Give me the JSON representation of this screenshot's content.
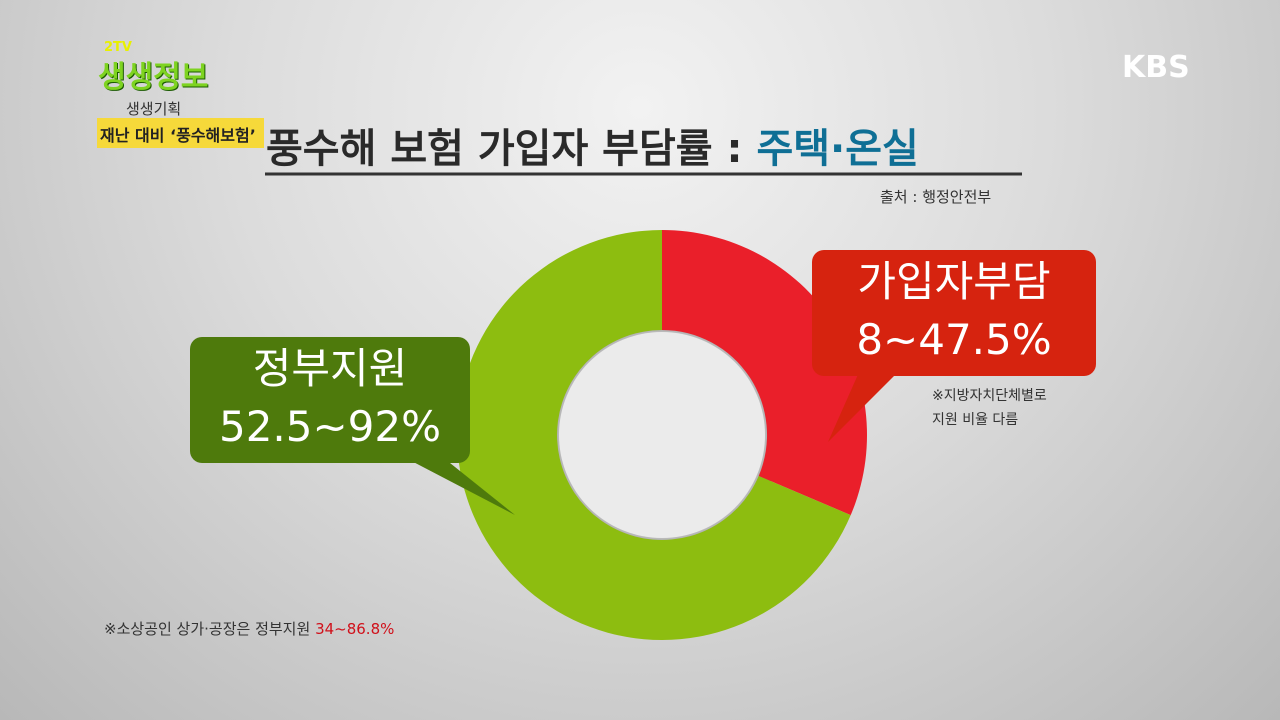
{
  "logo": {
    "channel": "2TV",
    "program": "생생정보",
    "segment": "생생기획",
    "topic": "재난 대비 ‘풍수해보험’"
  },
  "broadcaster": "KBS",
  "title": {
    "main": "풍수해 보험 가입자 부담률 :",
    "highlight": "주택·온실"
  },
  "source": "출처 : 행정안전부",
  "labels": [
    {
      "name": "정부지원",
      "range": "52.5~92%"
    },
    {
      "name": "가입자부담",
      "range": "8~47.5%"
    }
  ],
  "notes": {
    "local": [
      "※지방자치단체별로",
      "지원 비율 다름"
    ],
    "small_business": "※소상공인 상가·공장은 정부지원",
    "small_business_range": "34~86.8%"
  }
}
